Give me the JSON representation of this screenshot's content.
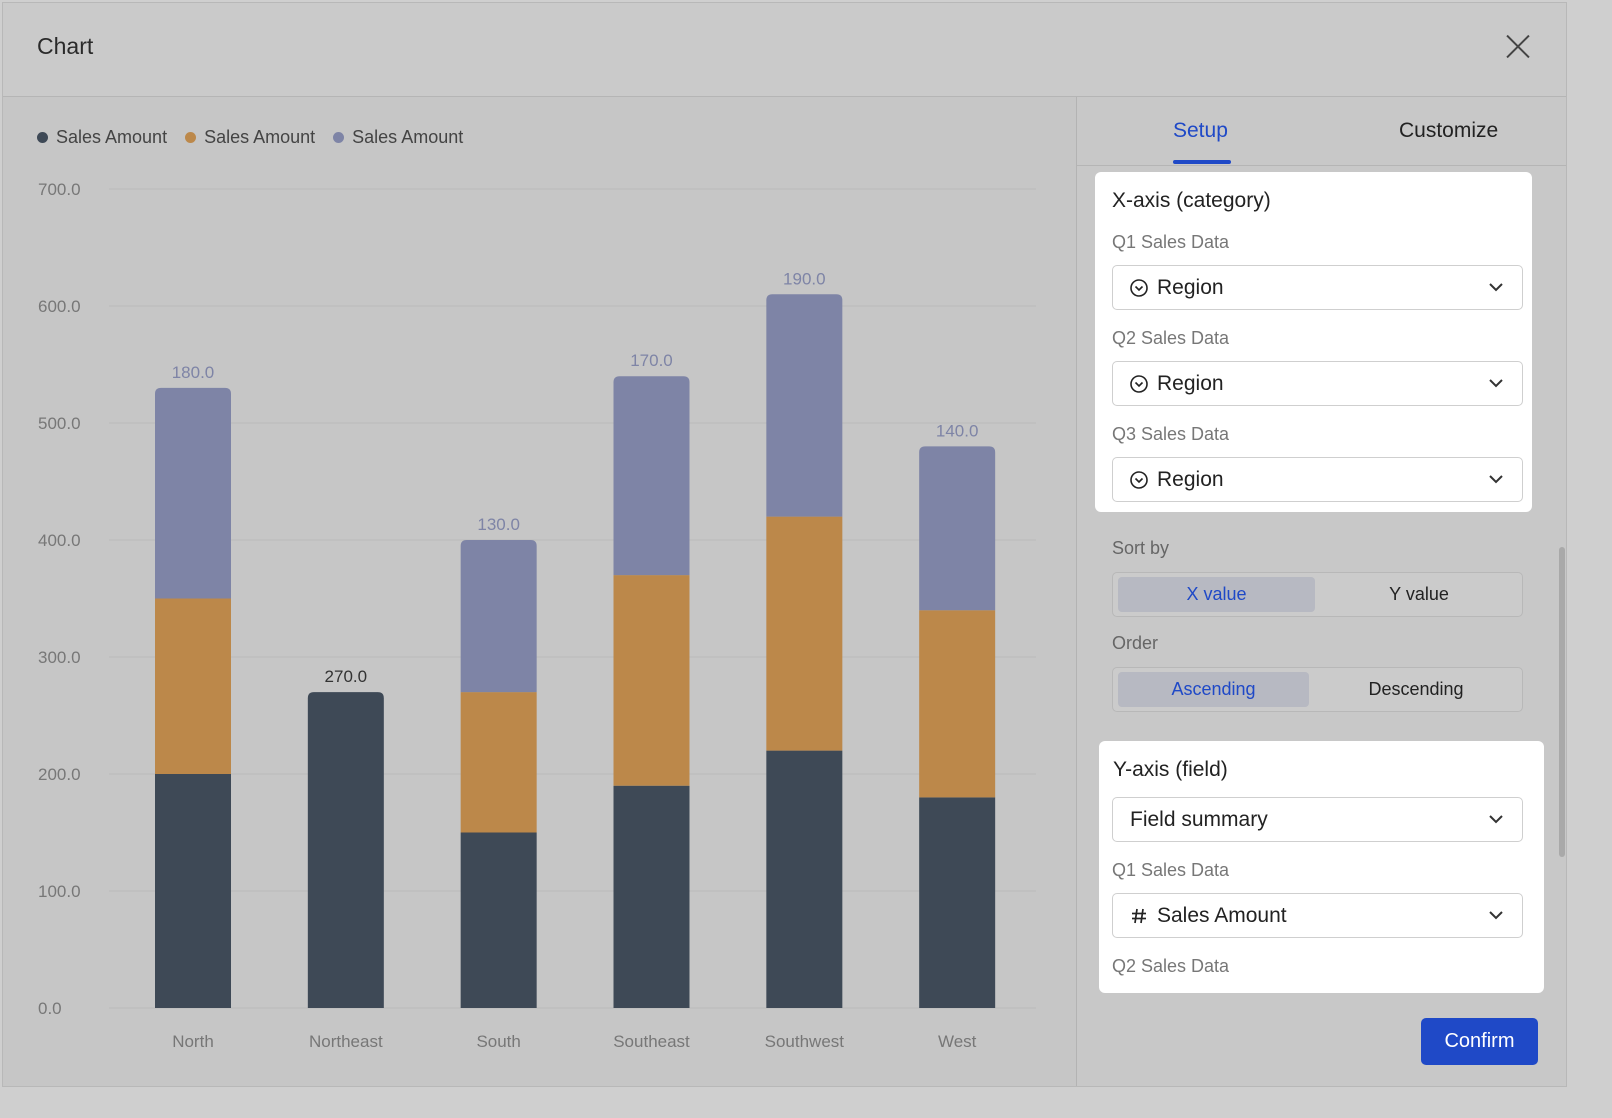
{
  "dialog": {
    "title": "Chart"
  },
  "legend": [
    {
      "label": "Sales Amount",
      "color": "#3e4956"
    },
    {
      "label": "Sales Amount",
      "color": "#bc884a"
    },
    {
      "label": "Sales Amount",
      "color": "#7e84a6"
    }
  ],
  "chart_data": {
    "type": "bar",
    "stacked": true,
    "categories": [
      "North",
      "Northeast",
      "South",
      "Southeast",
      "Southwest",
      "West"
    ],
    "series": [
      {
        "name": "Sales Amount",
        "color": "#3e4956",
        "values": [
          200.0,
          270.0,
          150.0,
          190.0,
          220.0,
          180.0
        ]
      },
      {
        "name": "Sales Amount",
        "color": "#bc884a",
        "values": [
          150.0,
          null,
          120.0,
          180.0,
          200.0,
          160.0
        ]
      },
      {
        "name": "Sales Amount",
        "color": "#7e84a6",
        "values": [
          180.0,
          null,
          130.0,
          170.0,
          190.0,
          140.0
        ]
      }
    ],
    "yticks": [
      "0.0",
      "100.0",
      "200.0",
      "300.0",
      "400.0",
      "500.0",
      "600.0",
      "700.0"
    ],
    "ylim": [
      0,
      700
    ],
    "grid": true,
    "legend_position": "top-left"
  },
  "panel": {
    "tabs": [
      {
        "label": "Setup",
        "active": true
      },
      {
        "label": "Customize",
        "active": false
      }
    ],
    "x_axis": {
      "title": "X-axis (category)",
      "fields": [
        {
          "label": "Q1 Sales Data",
          "value": "Region",
          "icon": "dropdown-circle-icon"
        },
        {
          "label": "Q2 Sales Data",
          "value": "Region",
          "icon": "dropdown-circle-icon"
        },
        {
          "label": "Q3 Sales Data",
          "value": "Region",
          "icon": "dropdown-circle-icon"
        }
      ]
    },
    "sort_by": {
      "label": "Sort by",
      "options": [
        "X value",
        "Y value"
      ],
      "selected": "X value"
    },
    "order": {
      "label": "Order",
      "options": [
        "Ascending",
        "Descending"
      ],
      "selected": "Ascending"
    },
    "y_axis": {
      "title": "Y-axis (field)",
      "summary": "Field summary",
      "fields": [
        {
          "label": "Q1 Sales Data",
          "value": "Sales Amount",
          "icon": "hash-icon"
        },
        {
          "label": "Q2 Sales Data"
        }
      ]
    },
    "confirm_label": "Confirm"
  },
  "colors": {
    "accent": "#1f49c7"
  }
}
